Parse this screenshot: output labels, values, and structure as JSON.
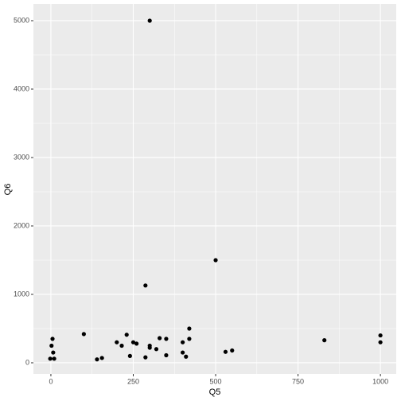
{
  "chart_data": {
    "type": "scatter",
    "x_label": "Q5",
    "y_label": "Q6",
    "x": [
      -2,
      2,
      5,
      7,
      10,
      100,
      140,
      155,
      200,
      215,
      230,
      240,
      250,
      260,
      287,
      287,
      300,
      300,
      300,
      320,
      330,
      350,
      350,
      400,
      400,
      410,
      420,
      420,
      500,
      530,
      550,
      830,
      1000,
      1000
    ],
    "values": [
      60,
      250,
      350,
      150,
      60,
      420,
      50,
      70,
      300,
      250,
      410,
      100,
      300,
      280,
      1130,
      80,
      250,
      220,
      5000,
      200,
      360,
      350,
      110,
      150,
      300,
      90,
      350,
      500,
      1500,
      160,
      180,
      330,
      400,
      300
    ],
    "color": "#000000",
    "xlim": [
      -53,
      1048
    ],
    "ylim": [
      -163,
      5244
    ],
    "xticks": [
      0,
      250,
      500,
      750,
      1000
    ],
    "yticks": [
      0,
      1000,
      2000,
      3000,
      4000,
      5000
    ],
    "xminor": [
      125,
      375,
      625,
      875
    ],
    "yminor": [
      500,
      1500,
      2500,
      3500,
      4500
    ],
    "grid": true,
    "panel_color": "#ebebeb",
    "grid_color": "#ffffff"
  }
}
